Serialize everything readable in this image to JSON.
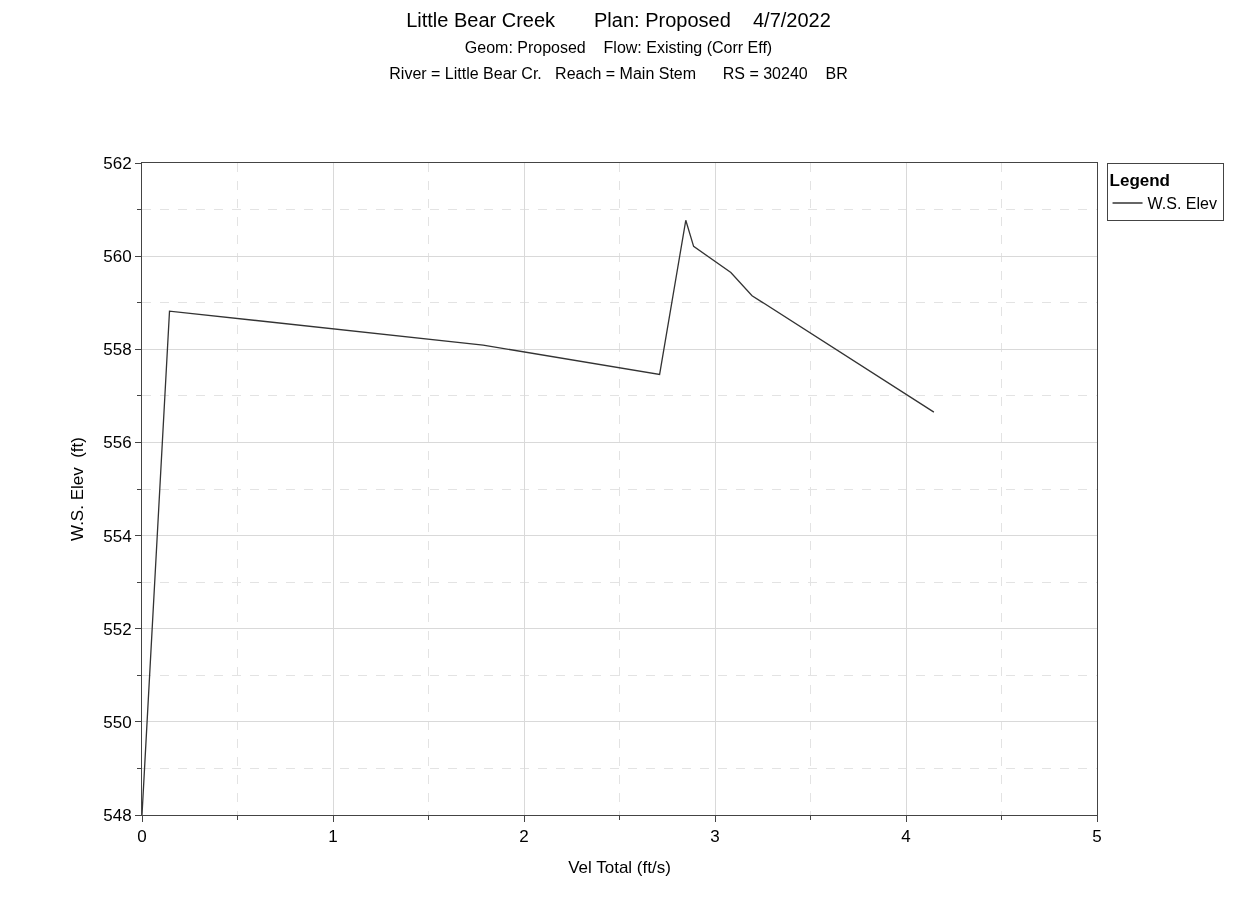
{
  "chart_data": {
    "type": "line",
    "title": "Little Bear Creek       Plan: Proposed    4/7/2022",
    "subtitle": "Geom: Proposed    Flow: Existing (Corr Eff)\nRiver = Little Bear Cr.   Reach = Main Stem      RS = 30240    BR",
    "xlabel": "Vel Total (ft/s)",
    "ylabel": "W.S. Elev  (ft)",
    "legend_title": "Legend",
    "legend": "top right",
    "grid": true,
    "marker": "none",
    "line_style": "solid",
    "x": [
      0,
      0.144,
      1.786,
      2.71,
      2.847,
      2.888,
      3.083,
      3.194,
      4.146
    ],
    "series": [
      {
        "name": "W.S. Elev",
        "color": "#333333",
        "values": [
          548,
          558.82,
          558.09,
          557.46,
          560.77,
          560.21,
          559.65,
          559.15,
          556.65
        ]
      }
    ],
    "xlim": [
      0,
      5
    ],
    "xticks": [
      0,
      1,
      2,
      3,
      4,
      5
    ],
    "ylim": [
      548,
      562
    ],
    "yticks": [
      548,
      550,
      552,
      554,
      556,
      558,
      560,
      562
    ]
  }
}
